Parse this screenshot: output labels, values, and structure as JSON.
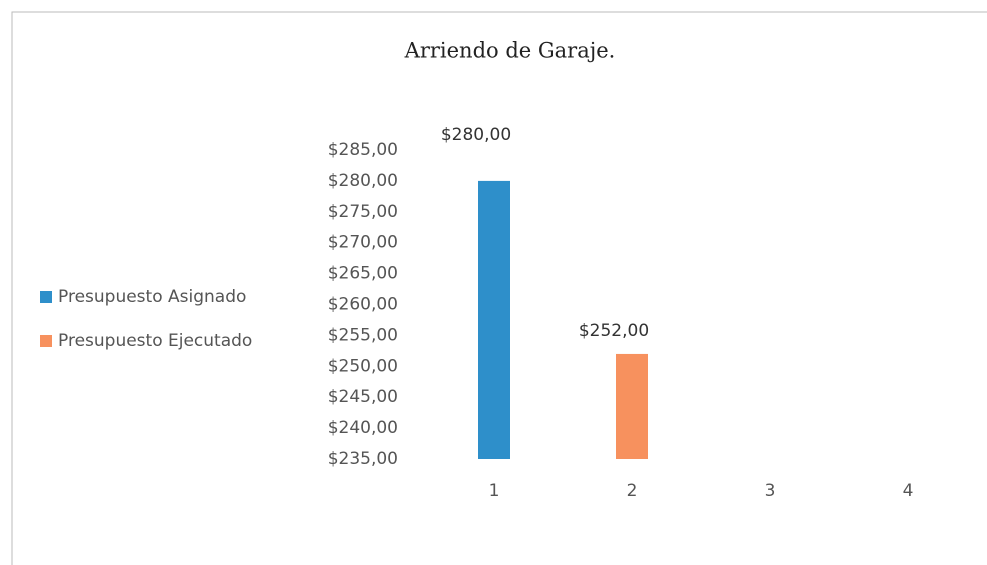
{
  "chart_data": {
    "type": "bar",
    "title": "Arriendo de Garaje.",
    "categories": [
      "1",
      "2",
      "3",
      "4"
    ],
    "series": [
      {
        "name": "Presupuesto Asignado",
        "color": "#2e8fca",
        "values": [
          280,
          null,
          null,
          null
        ],
        "value_labels": [
          "$280,00",
          null,
          null,
          null
        ]
      },
      {
        "name": "Presupuesto Ejecutado",
        "color": "#f7915e",
        "values": [
          null,
          252,
          null,
          null
        ],
        "value_labels": [
          null,
          "$252,00",
          null,
          null
        ]
      }
    ],
    "ylim": [
      235,
      285
    ],
    "yticks": [
      {
        "value": 235,
        "label": "$235,00"
      },
      {
        "value": 240,
        "label": "$240,00"
      },
      {
        "value": 245,
        "label": "$245,00"
      },
      {
        "value": 250,
        "label": "$250,00"
      },
      {
        "value": 255,
        "label": "$255,00"
      },
      {
        "value": 260,
        "label": "$260,00"
      },
      {
        "value": 265,
        "label": "$265,00"
      },
      {
        "value": 270,
        "label": "$270,00"
      },
      {
        "value": 275,
        "label": "$275,00"
      },
      {
        "value": 280,
        "label": "$280,00"
      },
      {
        "value": 285,
        "label": "$285,00"
      }
    ],
    "grid": false,
    "legend": "left"
  }
}
